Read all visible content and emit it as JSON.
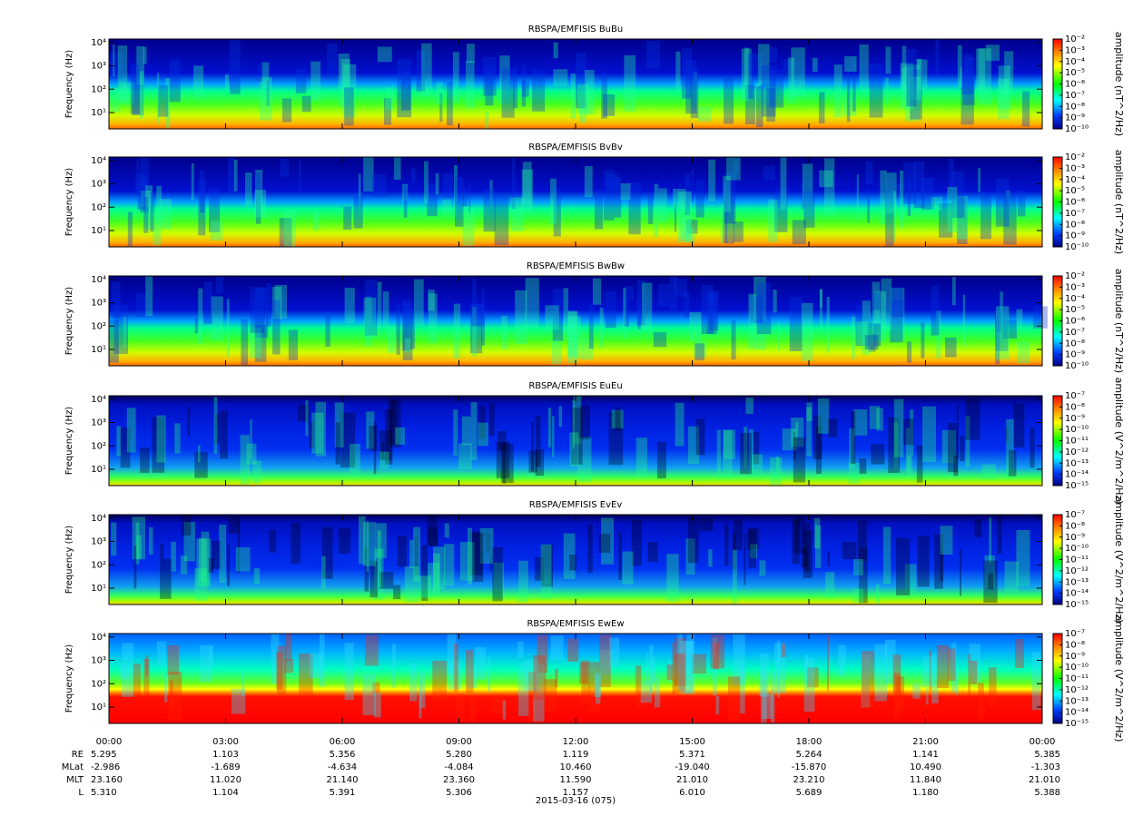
{
  "chart_data": [
    {
      "type": "spectrogram",
      "title": "RBSPA/EMFISIS  BuBu",
      "ylabel": "Frequency (Hz)",
      "ylog": true,
      "ylim": [
        2,
        14000
      ],
      "yticks": [
        {
          "value": 10,
          "label": "10¹"
        },
        {
          "value": 100,
          "label": "10²"
        },
        {
          "value": 1000,
          "label": "10³"
        },
        {
          "value": 10000,
          "label": "10⁴"
        }
      ],
      "zlabel": "amplitude (nT^2/Hz)",
      "zlim": [
        1e-10,
        0.01
      ],
      "zticks": [
        {
          "value": 0.01,
          "label": "10⁻²"
        },
        {
          "value": 0.001,
          "label": "10⁻³"
        },
        {
          "value": 0.0001,
          "label": "10⁻⁴"
        },
        {
          "value": 1e-05,
          "label": "10⁻⁵"
        },
        {
          "value": 1e-06,
          "label": "10⁻⁶"
        },
        {
          "value": 1e-07,
          "label": "10⁻⁷"
        },
        {
          "value": 1e-08,
          "label": "10⁻⁸"
        },
        {
          "value": 1e-09,
          "label": "10⁻⁹"
        },
        {
          "value": 1e-10,
          "label": "10⁻¹⁰"
        }
      ]
    },
    {
      "type": "spectrogram",
      "title": "RBSPA/EMFISIS  BvBv",
      "ylabel": "Frequency (Hz)",
      "ylog": true,
      "ylim": [
        2,
        14000
      ],
      "yticks": [
        {
          "value": 10,
          "label": "10¹"
        },
        {
          "value": 100,
          "label": "10²"
        },
        {
          "value": 1000,
          "label": "10³"
        },
        {
          "value": 10000,
          "label": "10⁴"
        }
      ],
      "zlabel": "amplitude (nT^2/Hz)",
      "zlim": [
        1e-10,
        0.01
      ],
      "zticks": [
        {
          "value": 0.01,
          "label": "10⁻²"
        },
        {
          "value": 0.001,
          "label": "10⁻³"
        },
        {
          "value": 0.0001,
          "label": "10⁻⁴"
        },
        {
          "value": 1e-05,
          "label": "10⁻⁵"
        },
        {
          "value": 1e-06,
          "label": "10⁻⁶"
        },
        {
          "value": 1e-07,
          "label": "10⁻⁷"
        },
        {
          "value": 1e-08,
          "label": "10⁻⁸"
        },
        {
          "value": 1e-09,
          "label": "10⁻⁹"
        },
        {
          "value": 1e-10,
          "label": "10⁻¹⁰"
        }
      ]
    },
    {
      "type": "spectrogram",
      "title": "RBSPA/EMFISIS  BwBw",
      "ylabel": "Frequency (Hz)",
      "ylog": true,
      "ylim": [
        2,
        14000
      ],
      "yticks": [
        {
          "value": 10,
          "label": "10¹"
        },
        {
          "value": 100,
          "label": "10²"
        },
        {
          "value": 1000,
          "label": "10³"
        },
        {
          "value": 10000,
          "label": "10⁴"
        }
      ],
      "zlabel": "amplitude (nT^2/Hz)",
      "zlim": [
        1e-10,
        0.01
      ],
      "zticks": [
        {
          "value": 0.01,
          "label": "10⁻²"
        },
        {
          "value": 0.001,
          "label": "10⁻³"
        },
        {
          "value": 0.0001,
          "label": "10⁻⁴"
        },
        {
          "value": 1e-05,
          "label": "10⁻⁵"
        },
        {
          "value": 1e-06,
          "label": "10⁻⁶"
        },
        {
          "value": 1e-07,
          "label": "10⁻⁷"
        },
        {
          "value": 1e-08,
          "label": "10⁻⁸"
        },
        {
          "value": 1e-09,
          "label": "10⁻⁹"
        },
        {
          "value": 1e-10,
          "label": "10⁻¹⁰"
        }
      ]
    },
    {
      "type": "spectrogram",
      "title": "RBSPA/EMFISIS  EuEu",
      "ylabel": "Frequency (Hz)",
      "ylog": true,
      "ylim": [
        2,
        14000
      ],
      "yticks": [
        {
          "value": 10,
          "label": "10¹"
        },
        {
          "value": 100,
          "label": "10²"
        },
        {
          "value": 1000,
          "label": "10³"
        },
        {
          "value": 10000,
          "label": "10⁴"
        }
      ],
      "zlabel": "amplitude (V^2/m^2/Hz)",
      "zlim": [
        1e-15,
        1e-07
      ],
      "zticks": [
        {
          "value": 1e-07,
          "label": "10⁻⁷"
        },
        {
          "value": 1e-08,
          "label": "10⁻⁸"
        },
        {
          "value": 1e-09,
          "label": "10⁻⁹"
        },
        {
          "value": 1e-10,
          "label": "10⁻¹⁰"
        },
        {
          "value": 1e-11,
          "label": "10⁻¹¹"
        },
        {
          "value": 1e-12,
          "label": "10⁻¹²"
        },
        {
          "value": 1e-13,
          "label": "10⁻¹³"
        },
        {
          "value": 1e-14,
          "label": "10⁻¹⁴"
        },
        {
          "value": 1e-15,
          "label": "10⁻¹⁵"
        }
      ]
    },
    {
      "type": "spectrogram",
      "title": "RBSPA/EMFISIS  EvEv",
      "ylabel": "Frequency (Hz)",
      "ylog": true,
      "ylim": [
        2,
        14000
      ],
      "yticks": [
        {
          "value": 10,
          "label": "10¹"
        },
        {
          "value": 100,
          "label": "10²"
        },
        {
          "value": 1000,
          "label": "10³"
        },
        {
          "value": 10000,
          "label": "10⁴"
        }
      ],
      "zlabel": "amplitude (V^2/m^2/Hz)",
      "zlim": [
        1e-15,
        1e-07
      ],
      "zticks": [
        {
          "value": 1e-07,
          "label": "10⁻⁷"
        },
        {
          "value": 1e-08,
          "label": "10⁻⁸"
        },
        {
          "value": 1e-09,
          "label": "10⁻⁹"
        },
        {
          "value": 1e-10,
          "label": "10⁻¹⁰"
        },
        {
          "value": 1e-11,
          "label": "10⁻¹¹"
        },
        {
          "value": 1e-12,
          "label": "10⁻¹²"
        },
        {
          "value": 1e-13,
          "label": "10⁻¹³"
        },
        {
          "value": 1e-14,
          "label": "10⁻¹⁴"
        },
        {
          "value": 1e-15,
          "label": "10⁻¹⁵"
        }
      ]
    },
    {
      "type": "spectrogram",
      "title": "RBSPA/EMFISIS  EwEw",
      "ylabel": "Frequency (Hz)",
      "ylog": true,
      "ylim": [
        2,
        14000
      ],
      "yticks": [
        {
          "value": 10,
          "label": "10¹"
        },
        {
          "value": 100,
          "label": "10²"
        },
        {
          "value": 1000,
          "label": "10³"
        },
        {
          "value": 10000,
          "label": "10⁴"
        }
      ],
      "zlabel": "amplitude (V^2/m^2/Hz)",
      "zlim": [
        1e-15,
        1e-07
      ],
      "zticks": [
        {
          "value": 1e-07,
          "label": "10⁻⁷"
        },
        {
          "value": 1e-08,
          "label": "10⁻⁸"
        },
        {
          "value": 1e-09,
          "label": "10⁻⁹"
        },
        {
          "value": 1e-10,
          "label": "10⁻¹⁰"
        },
        {
          "value": 1e-11,
          "label": "10⁻¹¹"
        },
        {
          "value": 1e-12,
          "label": "10⁻¹²"
        },
        {
          "value": 1e-13,
          "label": "10⁻¹³"
        },
        {
          "value": 1e-14,
          "label": "10⁻¹⁴"
        },
        {
          "value": 1e-15,
          "label": "10⁻¹⁵"
        }
      ],
      "xlim": [
        0,
        24
      ],
      "xticks": [
        {
          "value": 0,
          "label": "00:00"
        },
        {
          "value": 3,
          "label": "03:00"
        },
        {
          "value": 6,
          "label": "06:00"
        },
        {
          "value": 9,
          "label": "09:00"
        },
        {
          "value": 12,
          "label": "12:00"
        },
        {
          "value": 15,
          "label": "15:00"
        },
        {
          "value": 18,
          "label": "18:00"
        },
        {
          "value": 21,
          "label": "21:00"
        },
        {
          "value": 24,
          "label": "00:00"
        }
      ]
    }
  ],
  "ephemeris": {
    "rows": [
      {
        "name": "RE",
        "values": [
          "5.295",
          "1.103",
          "5.356",
          "5.280",
          "1.119",
          "5.371",
          "5.264",
          "1.141",
          "5.385"
        ]
      },
      {
        "name": "MLat",
        "values": [
          "-2.986",
          "-1.689",
          "-4.634",
          "-4.084",
          "10.460",
          "-19.040",
          "-15.870",
          "10.490",
          "-1.303"
        ]
      },
      {
        "name": "MLT",
        "values": [
          "23.160",
          "11.020",
          "21.140",
          "23.360",
          "11.590",
          "21.010",
          "23.210",
          "11.840",
          "21.010"
        ]
      },
      {
        "name": "L",
        "values": [
          "5.310",
          "1.104",
          "5.391",
          "5.306",
          "1.157",
          "6.010",
          "5.689",
          "1.180",
          "5.388"
        ]
      }
    ],
    "date": "2015-03-16 (075)"
  }
}
